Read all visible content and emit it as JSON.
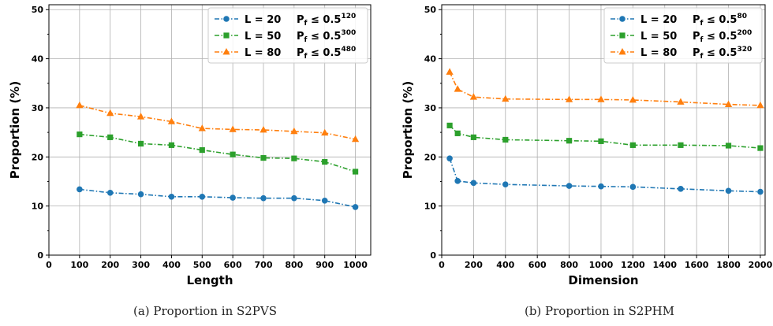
{
  "chart_data": [
    {
      "type": "line",
      "xlabel": "Length",
      "ylabel": "Proportion (%)",
      "xlim": [
        0,
        1050
      ],
      "ylim": [
        0,
        51
      ],
      "xticks": [
        0,
        100,
        200,
        300,
        400,
        500,
        600,
        700,
        800,
        900,
        1000
      ],
      "yticks": [
        0,
        10,
        20,
        30,
        40,
        50
      ],
      "grid": true,
      "legend_position": "top-right",
      "caption": "(a) Proportion in S2PVS",
      "x": [
        100,
        200,
        300,
        400,
        500,
        600,
        700,
        800,
        900,
        1000
      ],
      "series": [
        {
          "name": "L = 20",
          "pf_base": "P",
          "pf_sub": "f",
          "pf_rel": "≤ 0.5",
          "pf_exp": "120",
          "color": "#1f77b4",
          "marker": "circle",
          "values": [
            13.4,
            12.7,
            12.4,
            11.9,
            11.9,
            11.7,
            11.6,
            11.6,
            11.1,
            9.8
          ]
        },
        {
          "name": "L = 50",
          "pf_base": "P",
          "pf_sub": "f",
          "pf_rel": "≤ 0.5",
          "pf_exp": "300",
          "color": "#2ca02c",
          "marker": "square",
          "values": [
            24.6,
            24.0,
            22.7,
            22.4,
            21.4,
            20.5,
            19.8,
            19.7,
            19.0,
            17.0
          ]
        },
        {
          "name": "L = 80",
          "pf_base": "P",
          "pf_sub": "f",
          "pf_rel": "≤ 0.5",
          "pf_exp": "480",
          "color": "#ff7f0e",
          "marker": "triangle",
          "values": [
            30.5,
            28.9,
            28.2,
            27.2,
            25.8,
            25.6,
            25.5,
            25.2,
            24.9,
            23.6
          ]
        }
      ]
    },
    {
      "type": "line",
      "xlabel": "Dimension",
      "ylabel": "Proportion (%)",
      "xlim": [
        0,
        2030
      ],
      "ylim": [
        0,
        51
      ],
      "xticks": [
        0,
        200,
        400,
        600,
        800,
        1000,
        1200,
        1400,
        1600,
        1800,
        2000
      ],
      "yticks": [
        0,
        10,
        20,
        30,
        40,
        50
      ],
      "grid": true,
      "legend_position": "top-right",
      "caption": "(b) Proportion in S2PHM",
      "x": [
        50,
        100,
        200,
        400,
        800,
        1000,
        1200,
        1500,
        1800,
        2000
      ],
      "series": [
        {
          "name": "L = 20",
          "pf_base": "P",
          "pf_sub": "f",
          "pf_rel": "≤ 0.5",
          "pf_exp": "80",
          "color": "#1f77b4",
          "marker": "circle",
          "values": [
            19.7,
            15.1,
            14.7,
            14.4,
            14.1,
            14.0,
            13.9,
            13.5,
            13.1,
            12.9
          ]
        },
        {
          "name": "L = 50",
          "pf_base": "P",
          "pf_sub": "f",
          "pf_rel": "≤ 0.5",
          "pf_exp": "200",
          "color": "#2ca02c",
          "marker": "square",
          "values": [
            26.4,
            24.8,
            24.0,
            23.5,
            23.3,
            23.2,
            22.4,
            22.4,
            22.3,
            21.8
          ]
        },
        {
          "name": "L = 80",
          "pf_base": "P",
          "pf_sub": "f",
          "pf_rel": "≤ 0.5",
          "pf_exp": "320",
          "color": "#ff7f0e",
          "marker": "triangle",
          "values": [
            37.3,
            33.8,
            32.2,
            31.8,
            31.7,
            31.7,
            31.6,
            31.2,
            30.7,
            30.5
          ]
        }
      ]
    }
  ]
}
